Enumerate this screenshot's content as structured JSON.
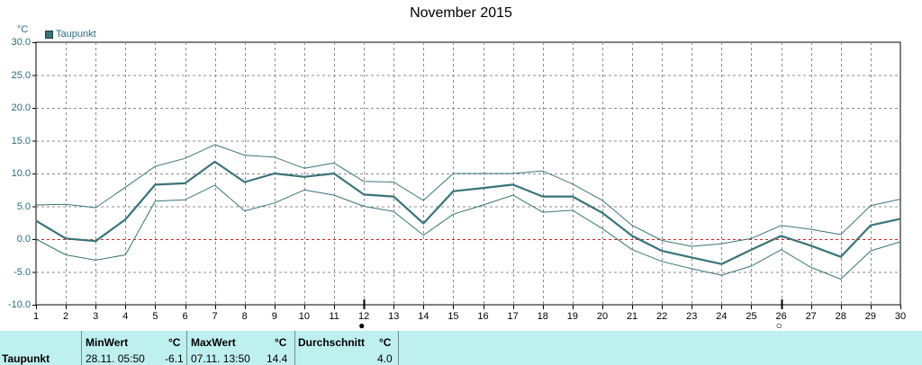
{
  "title": "November 2015",
  "unit": "°C",
  "legend_label": "Taupunkt",
  "colors": {
    "series": "#3a7378",
    "axis_text": "#2b6b79",
    "grid": "#8c8c8c",
    "zero_line": "#d42020",
    "panel_bg": "#bff0f0"
  },
  "chart_data": {
    "type": "line",
    "title": "November 2015",
    "ylabel": "°C",
    "ylim": [
      -10,
      30
    ],
    "xlim": [
      1,
      30
    ],
    "yticks": [
      "30.0",
      "25.0",
      "20.0",
      "15.0",
      "10.0",
      "5.0",
      "0.0",
      "-5.0",
      "-10.0"
    ],
    "x": [
      1,
      2,
      3,
      4,
      5,
      6,
      7,
      8,
      9,
      10,
      11,
      12,
      13,
      14,
      15,
      16,
      17,
      18,
      19,
      20,
      21,
      22,
      23,
      24,
      25,
      26,
      27,
      28,
      29,
      30
    ],
    "grid": true,
    "legend": "top-left",
    "series": [
      {
        "name": "Taupunkt",
        "role": "mean",
        "values": [
          2.8,
          0.1,
          -0.3,
          3.0,
          8.3,
          8.5,
          11.8,
          8.7,
          10.0,
          9.5,
          10.0,
          6.8,
          6.5,
          2.4,
          7.3,
          7.8,
          8.3,
          6.5,
          6.5,
          4.0,
          0.5,
          -1.8,
          -2.8,
          -3.8,
          -1.6,
          0.5,
          -1.0,
          -2.7,
          2.1,
          3.1
        ]
      },
      {
        "role": "max",
        "values": [
          5.2,
          5.3,
          4.8,
          7.9,
          11.1,
          12.3,
          14.4,
          12.8,
          12.5,
          10.8,
          11.6,
          8.8,
          8.7,
          5.9,
          10.0,
          10.0,
          10.0,
          10.4,
          8.4,
          5.9,
          2.1,
          -0.2,
          -1.1,
          -0.7,
          0.1,
          2.1,
          1.5,
          0.7,
          5.1,
          6.1
        ]
      },
      {
        "role": "min",
        "values": [
          0.0,
          -2.4,
          -3.2,
          -2.4,
          5.8,
          6.0,
          8.2,
          4.3,
          5.5,
          7.5,
          6.7,
          5.0,
          4.2,
          0.6,
          3.8,
          5.2,
          6.7,
          4.1,
          4.4,
          1.6,
          -1.6,
          -3.4,
          -4.5,
          -5.5,
          -4.1,
          -1.6,
          -4.3,
          -6.1,
          -1.8,
          -0.4
        ]
      }
    ],
    "moon_phases": [
      {
        "day": 12,
        "phase": "new-moon",
        "symbol": "●"
      },
      {
        "day": 26,
        "phase": "full-moon",
        "symbol": "○"
      }
    ]
  },
  "stats": {
    "name": "Taupunkt",
    "min": {
      "header": "MinWert",
      "unit": "°C",
      "date": "28.11.  05:50",
      "value": "-6.1"
    },
    "max": {
      "header": "MaxWert",
      "unit": "°C",
      "date": "07.11.  13:50",
      "value": "14.4"
    },
    "avg": {
      "header": "Durchschnitt",
      "unit": "°C",
      "value": "4.0"
    }
  }
}
